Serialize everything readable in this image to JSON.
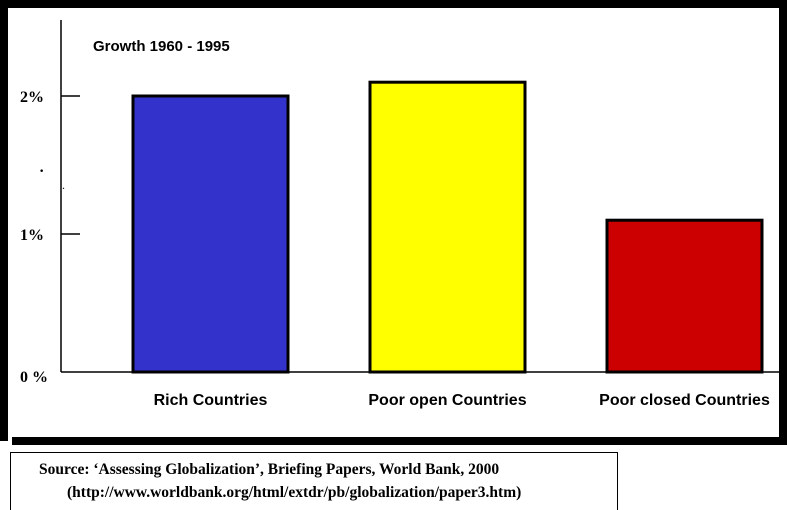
{
  "chart_data": {
    "type": "bar",
    "title": "Growth 1960 - 1995",
    "categories": [
      "Rich Countries",
      "Poor open Countries",
      "Poor closed Countries"
    ],
    "values": [
      2.0,
      2.1,
      1.1
    ],
    "colors": [
      "#3333cc",
      "#ffff00",
      "#cc0000"
    ],
    "ylim": [
      0,
      2.5
    ],
    "y_ticks": [
      {
        "value": 0,
        "label": "0 %"
      },
      {
        "value": 1,
        "label": "1%"
      },
      {
        "value": 2,
        "label": "2%"
      }
    ],
    "stray_marks": [
      "·",
      "."
    ],
    "xlabel": "",
    "ylabel": "",
    "grid": false,
    "legend": "none"
  },
  "source": {
    "line1": "Source: ‘Assessing Globalization’, Briefing Papers, World Bank,  2000",
    "line2": "(http://www.worldbank.org/html/extdr/pb/globalization/paper3.htm)"
  }
}
